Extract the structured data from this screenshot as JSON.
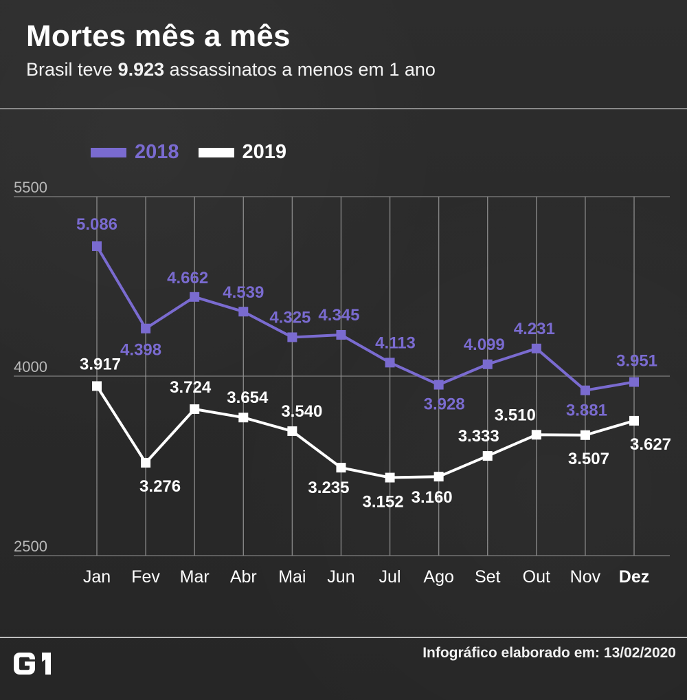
{
  "header": {
    "title": "Mortes mês a mês",
    "subtitle_prefix": "Brasil teve",
    "subtitle_number": "9.923",
    "subtitle_suffix": "assassinatos a menos em 1 ano"
  },
  "colors": {
    "series_2018": "#7a6bd0",
    "series_2019": "#ffffff",
    "grid": "#8f8f8f",
    "axis_text": "#b8b8b8",
    "background": "#2b2b2b"
  },
  "chart_data": {
    "type": "line",
    "title": "Mortes mês a mês",
    "subtitle": "Brasil teve 9.923 assassinatos a menos em 1 ano",
    "xlabel": "",
    "ylabel": "",
    "categories": [
      "Jan",
      "Fev",
      "Mar",
      "Abr",
      "Mai",
      "Jun",
      "Jul",
      "Ago",
      "Set",
      "Out",
      "Nov",
      "Dez"
    ],
    "series": [
      {
        "name": "2018",
        "values": [
          5086,
          4398,
          4662,
          4539,
          4325,
          4345,
          4113,
          3928,
          4099,
          4231,
          3881,
          3951
        ],
        "labels": [
          "5.086",
          "4.398",
          "4.662",
          "4.539",
          "4.325",
          "4.345",
          "4.113",
          "3.928",
          "4.099",
          "4.231",
          "3.881",
          "3.951"
        ]
      },
      {
        "name": "2019",
        "values": [
          3917,
          3276,
          3724,
          3654,
          3540,
          3235,
          3152,
          3160,
          3333,
          3510,
          3507,
          3627
        ],
        "labels": [
          "3.917",
          "3.276",
          "3.724",
          "3.654",
          "3.540",
          "3.235",
          "3.152",
          "3.160",
          "3.333",
          "3.510",
          "3.507",
          "3.627"
        ]
      }
    ],
    "ylim": [
      2500,
      5500
    ],
    "yticks": [
      "5500",
      "4000",
      "2500"
    ],
    "grid": true,
    "legend": "top-left"
  },
  "footer": {
    "brand": "G1",
    "note": "Infográfico elaborado em: 13/02/2020"
  }
}
